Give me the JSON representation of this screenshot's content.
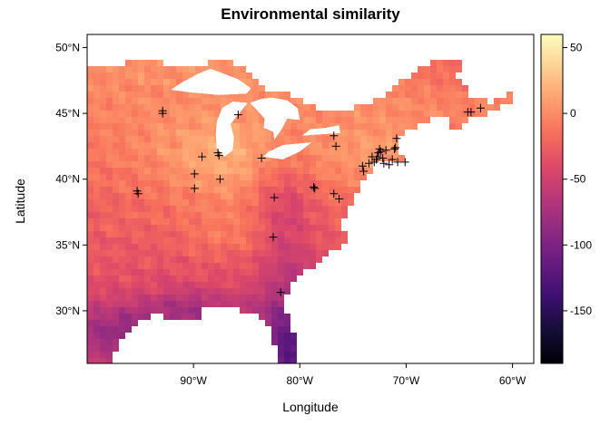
{
  "chart_data": {
    "type": "heatmap",
    "title": "Environmental similarity",
    "xlabel": "Longitude",
    "ylabel": "Latitude",
    "xlim": [
      -100,
      -58
    ],
    "ylim": [
      26,
      51
    ],
    "xticks": [
      {
        "value": -90,
        "label": "90°W"
      },
      {
        "value": -80,
        "label": "80°W"
      },
      {
        "value": -70,
        "label": "70°W"
      },
      {
        "value": -60,
        "label": "60°W"
      }
    ],
    "yticks": [
      {
        "value": 30,
        "label": "30°N"
      },
      {
        "value": 35,
        "label": "35°N"
      },
      {
        "value": 40,
        "label": "40°N"
      },
      {
        "value": 45,
        "label": "45°N"
      },
      {
        "value": 50,
        "label": "50°N"
      }
    ],
    "colorbar": {
      "range": [
        -190,
        60
      ],
      "colormap": "magma",
      "ticks": [
        {
          "value": 50,
          "label": "50"
        },
        {
          "value": 0,
          "label": "0"
        },
        {
          "value": -50,
          "label": "-50"
        },
        {
          "value": -100,
          "label": "-100"
        },
        {
          "value": -150,
          "label": "-150"
        }
      ]
    },
    "stops": [
      {
        "offset": 0.0,
        "color": "#000004"
      },
      {
        "offset": 0.1,
        "color": "#140e36"
      },
      {
        "offset": 0.2,
        "color": "#3b0f70"
      },
      {
        "offset": 0.3,
        "color": "#641a80"
      },
      {
        "offset": 0.4,
        "color": "#8c2981"
      },
      {
        "offset": 0.5,
        "color": "#b73779"
      },
      {
        "offset": 0.6,
        "color": "#de4968"
      },
      {
        "offset": 0.7,
        "color": "#f7705c"
      },
      {
        "offset": 0.8,
        "color": "#fe9f6d"
      },
      {
        "offset": 0.9,
        "color": "#fecf92"
      },
      {
        "offset": 1.0,
        "color": "#fcfdbf"
      }
    ],
    "points": [
      {
        "x": -92.9,
        "y": 45.2
      },
      {
        "x": -92.9,
        "y": 45.0
      },
      {
        "x": -85.8,
        "y": 44.9
      },
      {
        "x": -64.2,
        "y": 45.1
      },
      {
        "x": -63.9,
        "y": 45.1
      },
      {
        "x": -63.0,
        "y": 45.4
      },
      {
        "x": -76.8,
        "y": 43.3
      },
      {
        "x": -76.6,
        "y": 42.5
      },
      {
        "x": -87.7,
        "y": 42.0
      },
      {
        "x": -87.6,
        "y": 41.8
      },
      {
        "x": -89.2,
        "y": 41.7
      },
      {
        "x": -83.6,
        "y": 41.6
      },
      {
        "x": -89.9,
        "y": 40.4
      },
      {
        "x": -87.5,
        "y": 40.0
      },
      {
        "x": -89.9,
        "y": 39.3
      },
      {
        "x": -95.3,
        "y": 39.1
      },
      {
        "x": -95.2,
        "y": 38.9
      },
      {
        "x": -78.7,
        "y": 39.4
      },
      {
        "x": -78.6,
        "y": 39.3
      },
      {
        "x": -76.8,
        "y": 38.9
      },
      {
        "x": -76.3,
        "y": 38.5
      },
      {
        "x": -82.4,
        "y": 38.6
      },
      {
        "x": -82.5,
        "y": 35.6
      },
      {
        "x": -81.8,
        "y": 31.4
      },
      {
        "x": -74.0,
        "y": 40.6
      },
      {
        "x": -74.1,
        "y": 41.0
      },
      {
        "x": -73.5,
        "y": 41.2
      },
      {
        "x": -73.0,
        "y": 41.3
      },
      {
        "x": -72.8,
        "y": 41.5
      },
      {
        "x": -72.7,
        "y": 41.7
      },
      {
        "x": -72.6,
        "y": 42.0
      },
      {
        "x": -72.4,
        "y": 42.1
      },
      {
        "x": -72.2,
        "y": 41.6
      },
      {
        "x": -72.1,
        "y": 41.2
      },
      {
        "x": -71.6,
        "y": 41.1
      },
      {
        "x": -71.3,
        "y": 41.5
      },
      {
        "x": -71.1,
        "y": 42.3
      },
      {
        "x": -71.0,
        "y": 42.4
      },
      {
        "x": -70.9,
        "y": 43.1
      },
      {
        "x": -70.8,
        "y": 41.3
      },
      {
        "x": -70.1,
        "y": 41.3
      },
      {
        "x": -71.9,
        "y": 42.2
      },
      {
        "x": -72.5,
        "y": 42.3
      },
      {
        "x": -73.2,
        "y": 41.7
      }
    ]
  }
}
